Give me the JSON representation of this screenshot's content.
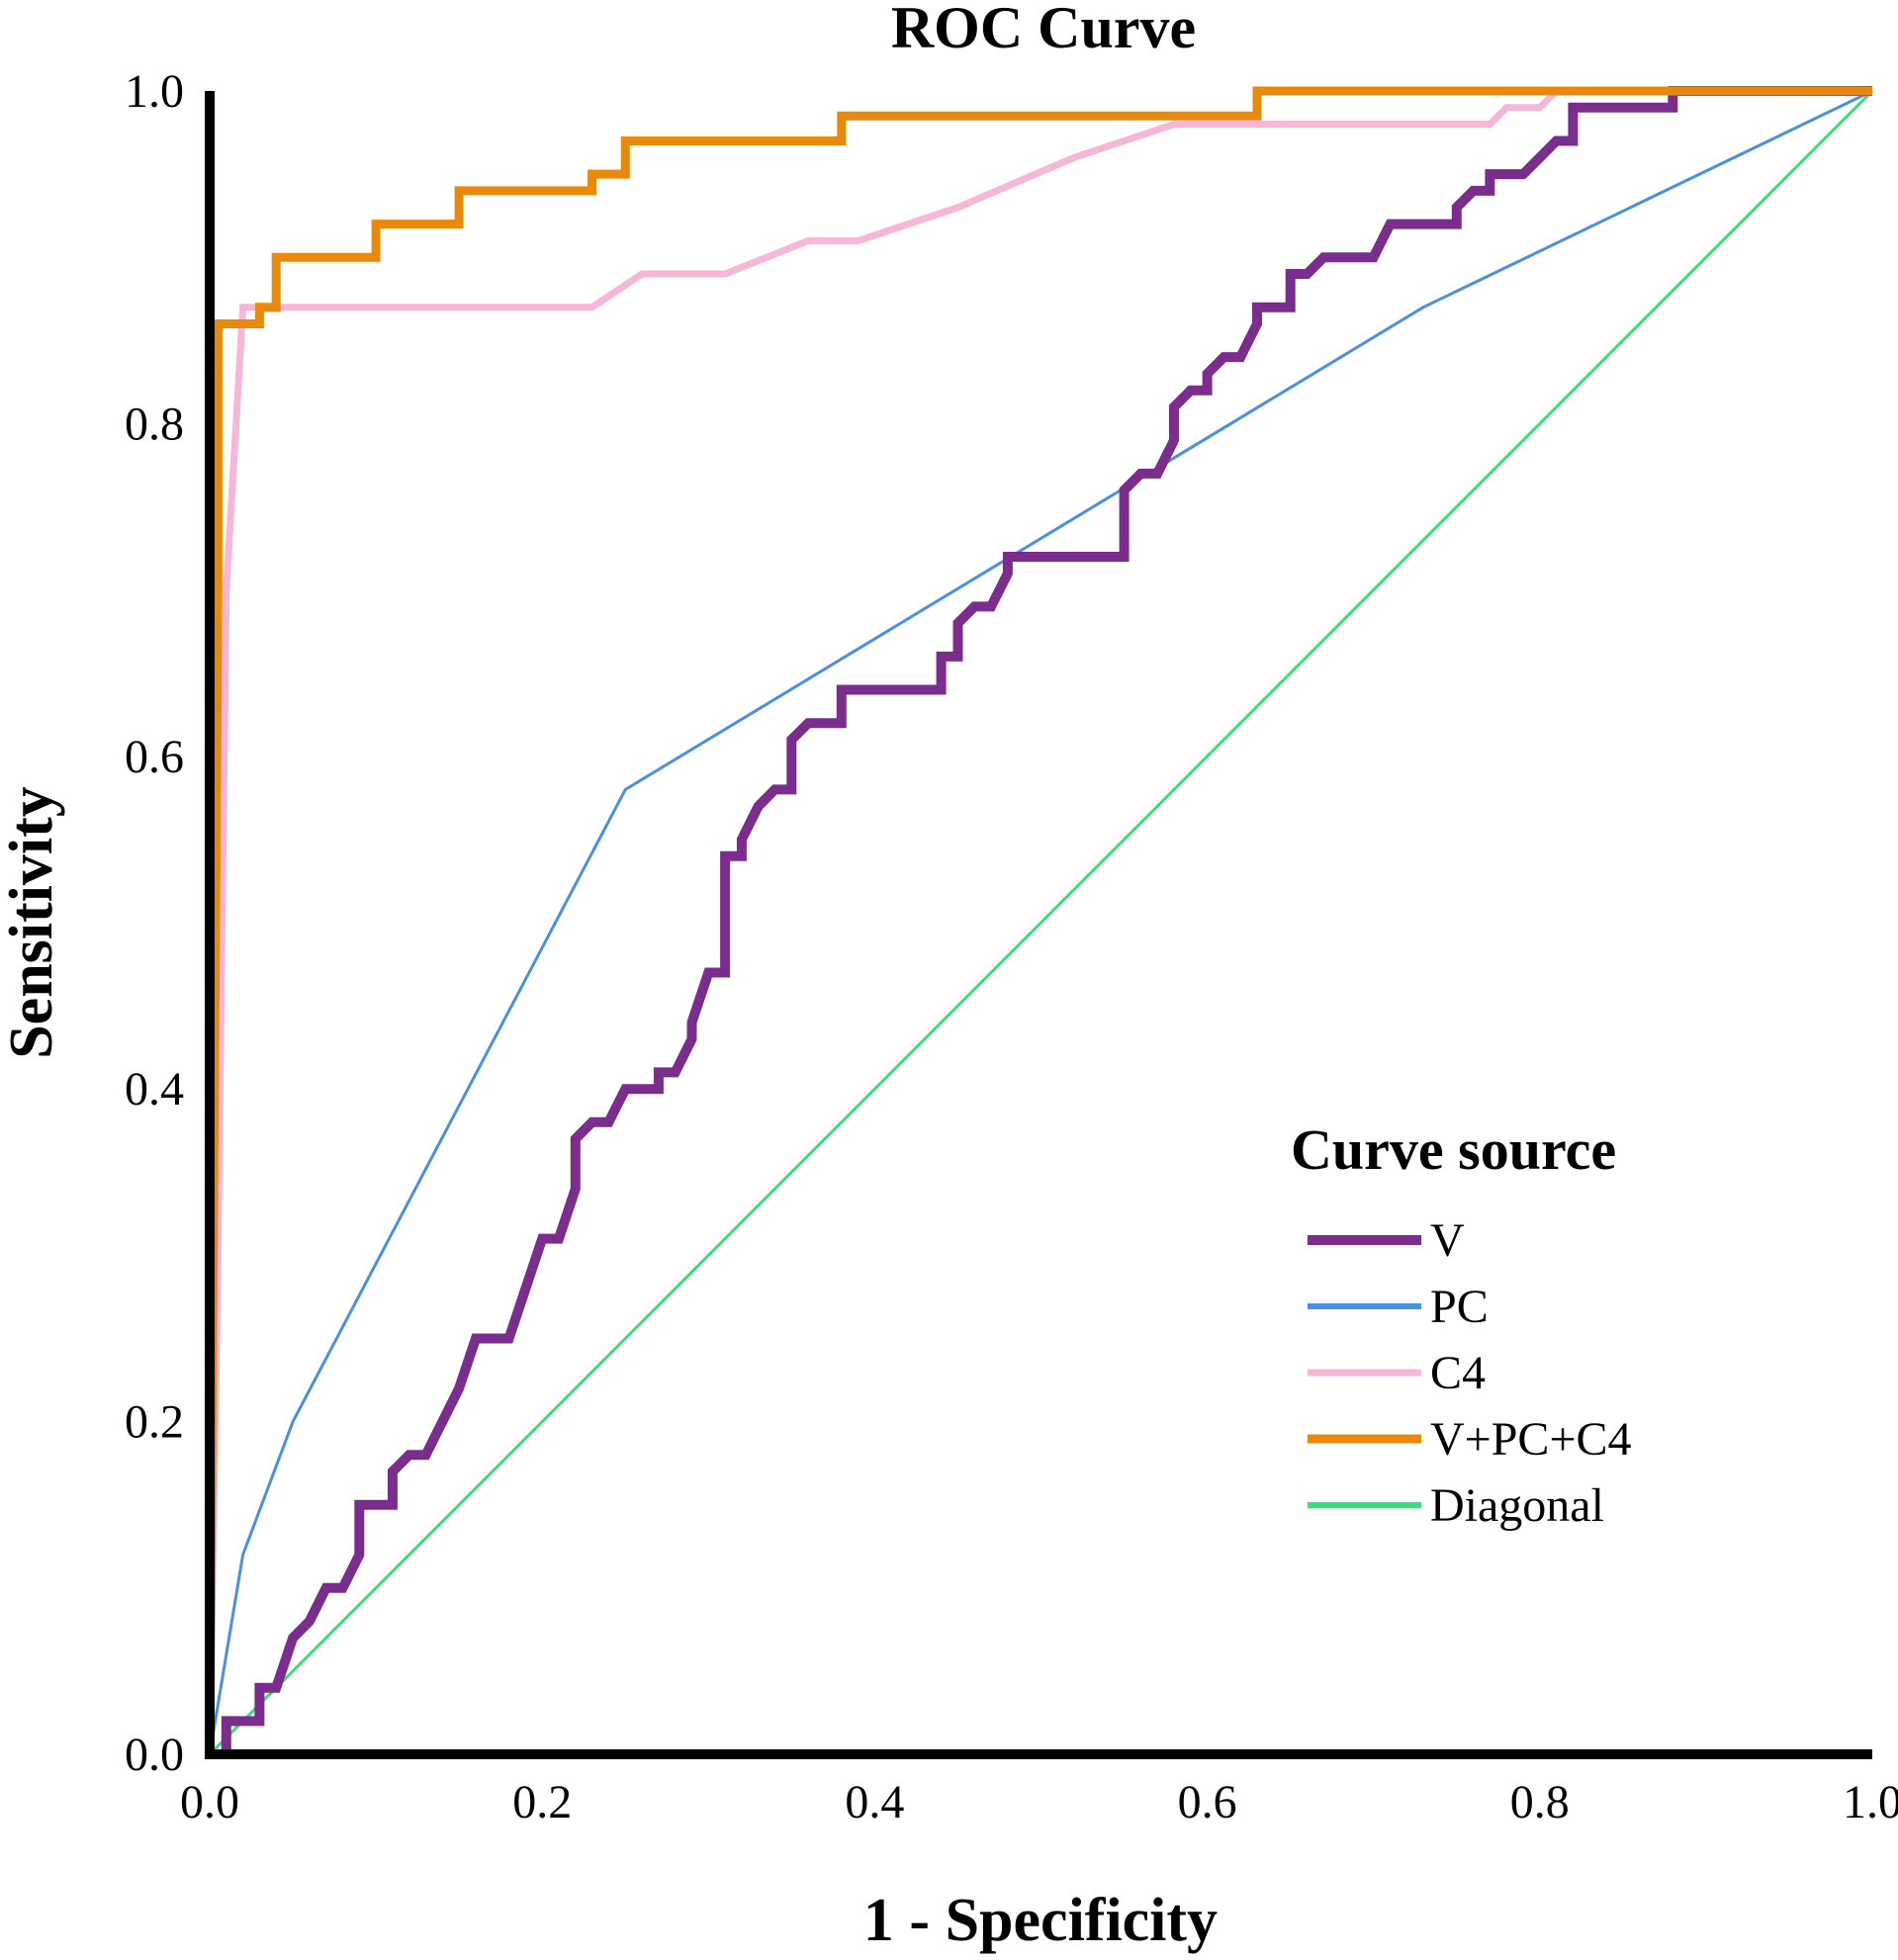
{
  "chart_data": {
    "type": "line",
    "title": "ROC Curve",
    "xlabel": "1 - Specificity",
    "ylabel": "Sensitivity",
    "xlim": [
      0,
      1
    ],
    "ylim": [
      0,
      1
    ],
    "xticks": [
      "0.0",
      "0.2",
      "0.4",
      "0.6",
      "0.8",
      "1.0"
    ],
    "yticks": [
      "0.0",
      "0.2",
      "0.4",
      "0.6",
      "0.8",
      "1.0"
    ],
    "legend_title": "Curve source",
    "legend_position": "bottom-right",
    "series": [
      {
        "name": "V",
        "color": "#7b2d8e",
        "points": [
          [
            0,
            0
          ],
          [
            0.01,
            0
          ],
          [
            0.01,
            0.02
          ],
          [
            0.03,
            0.02
          ],
          [
            0.03,
            0.04
          ],
          [
            0.04,
            0.04
          ],
          [
            0.05,
            0.07
          ],
          [
            0.06,
            0.08
          ],
          [
            0.07,
            0.1
          ],
          [
            0.08,
            0.1
          ],
          [
            0.09,
            0.12
          ],
          [
            0.09,
            0.15
          ],
          [
            0.11,
            0.15
          ],
          [
            0.11,
            0.17
          ],
          [
            0.12,
            0.18
          ],
          [
            0.13,
            0.18
          ],
          [
            0.14,
            0.2
          ],
          [
            0.15,
            0.22
          ],
          [
            0.16,
            0.25
          ],
          [
            0.18,
            0.25
          ],
          [
            0.19,
            0.28
          ],
          [
            0.2,
            0.31
          ],
          [
            0.21,
            0.31
          ],
          [
            0.22,
            0.34
          ],
          [
            0.22,
            0.37
          ],
          [
            0.23,
            0.38
          ],
          [
            0.24,
            0.38
          ],
          [
            0.25,
            0.4
          ],
          [
            0.27,
            0.4
          ],
          [
            0.27,
            0.41
          ],
          [
            0.28,
            0.41
          ],
          [
            0.29,
            0.43
          ],
          [
            0.29,
            0.44
          ],
          [
            0.3,
            0.47
          ],
          [
            0.31,
            0.47
          ],
          [
            0.31,
            0.54
          ],
          [
            0.32,
            0.54
          ],
          [
            0.32,
            0.55
          ],
          [
            0.33,
            0.57
          ],
          [
            0.34,
            0.58
          ],
          [
            0.35,
            0.58
          ],
          [
            0.35,
            0.61
          ],
          [
            0.36,
            0.62
          ],
          [
            0.38,
            0.62
          ],
          [
            0.38,
            0.64
          ],
          [
            0.44,
            0.64
          ],
          [
            0.44,
            0.66
          ],
          [
            0.45,
            0.66
          ],
          [
            0.45,
            0.68
          ],
          [
            0.46,
            0.69
          ],
          [
            0.47,
            0.69
          ],
          [
            0.48,
            0.71
          ],
          [
            0.48,
            0.72
          ],
          [
            0.55,
            0.72
          ],
          [
            0.55,
            0.76
          ],
          [
            0.56,
            0.77
          ],
          [
            0.57,
            0.77
          ],
          [
            0.58,
            0.79
          ],
          [
            0.58,
            0.81
          ],
          [
            0.59,
            0.82
          ],
          [
            0.6,
            0.82
          ],
          [
            0.6,
            0.83
          ],
          [
            0.61,
            0.84
          ],
          [
            0.62,
            0.84
          ],
          [
            0.63,
            0.86
          ],
          [
            0.63,
            0.87
          ],
          [
            0.64,
            0.87
          ],
          [
            0.65,
            0.87
          ],
          [
            0.65,
            0.89
          ],
          [
            0.66,
            0.89
          ],
          [
            0.67,
            0.9
          ],
          [
            0.7,
            0.9
          ],
          [
            0.71,
            0.92
          ],
          [
            0.75,
            0.92
          ],
          [
            0.75,
            0.93
          ],
          [
            0.76,
            0.94
          ],
          [
            0.77,
            0.94
          ],
          [
            0.77,
            0.95
          ],
          [
            0.79,
            0.95
          ],
          [
            0.8,
            0.96
          ],
          [
            0.81,
            0.97
          ],
          [
            0.82,
            0.97
          ],
          [
            0.82,
            0.99
          ],
          [
            0.88,
            0.99
          ],
          [
            0.88,
            1.0
          ],
          [
            1,
            1
          ]
        ]
      },
      {
        "name": "PC",
        "color": "#4a90e2",
        "points": [
          [
            0,
            0
          ],
          [
            0.02,
            0.12
          ],
          [
            0.05,
            0.2
          ],
          [
            0.25,
            0.58
          ],
          [
            0.73,
            0.87
          ],
          [
            1,
            1
          ]
        ]
      },
      {
        "name": "C4",
        "color": "#f7b6d8",
        "points": [
          [
            0,
            0
          ],
          [
            0.005,
            0.3
          ],
          [
            0.01,
            0.7
          ],
          [
            0.02,
            0.87
          ],
          [
            0.23,
            0.87
          ],
          [
            0.26,
            0.89
          ],
          [
            0.31,
            0.89
          ],
          [
            0.36,
            0.91
          ],
          [
            0.39,
            0.91
          ],
          [
            0.45,
            0.93
          ],
          [
            0.52,
            0.96
          ],
          [
            0.58,
            0.98
          ],
          [
            0.77,
            0.98
          ],
          [
            0.78,
            0.99
          ],
          [
            0.8,
            0.99
          ],
          [
            0.81,
            1.0
          ],
          [
            1,
            1
          ]
        ]
      },
      {
        "name": "V+PC+C4",
        "color": "#e8890c",
        "points": [
          [
            0,
            0
          ],
          [
            0.005,
            0.7
          ],
          [
            0.005,
            0.86
          ],
          [
            0.03,
            0.86
          ],
          [
            0.03,
            0.87
          ],
          [
            0.04,
            0.87
          ],
          [
            0.04,
            0.9
          ],
          [
            0.1,
            0.9
          ],
          [
            0.1,
            0.92
          ],
          [
            0.15,
            0.92
          ],
          [
            0.15,
            0.94
          ],
          [
            0.23,
            0.94
          ],
          [
            0.23,
            0.95
          ],
          [
            0.25,
            0.95
          ],
          [
            0.25,
            0.97
          ],
          [
            0.38,
            0.97
          ],
          [
            0.38,
            0.985
          ],
          [
            0.63,
            0.985
          ],
          [
            0.63,
            1.0
          ],
          [
            1,
            1
          ]
        ]
      },
      {
        "name": "Diagonal",
        "color": "#3ddc7a",
        "points": [
          [
            0,
            0
          ],
          [
            1,
            1
          ]
        ]
      }
    ]
  }
}
